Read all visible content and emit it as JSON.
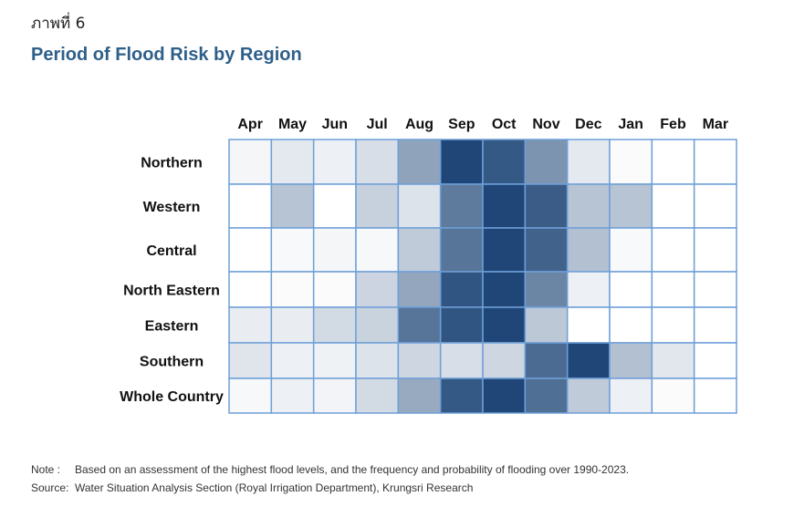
{
  "figure_label": "ภาพที่ 6",
  "footer": {
    "note_key": "Note :",
    "note_text": "Based on an assessment of the highest flood levels, and the frequency and probability of flooding over 1990-2023.",
    "source_key": "Source:",
    "source_text": "Water Situation Analysis Section (Royal Irrigation Department), Krungsri Research"
  },
  "colors": {
    "low": "#ffffff",
    "high": "#1f4677",
    "grid_line": "#6f9fd8",
    "title": "#2e5f8a"
  },
  "chart_data": {
    "type": "heatmap",
    "title": "Period of Flood Risk by Region",
    "xlabel": "",
    "ylabel": "",
    "x_categories": [
      "Apr",
      "May",
      "Jun",
      "Jul",
      "Aug",
      "Sep",
      "Oct",
      "Nov",
      "Dec",
      "Jan",
      "Feb",
      "Mar"
    ],
    "y_categories": [
      "Northern",
      "Western",
      "Central",
      "North Eastern",
      "Eastern",
      "Southern",
      "Whole Country"
    ],
    "value_range": [
      0,
      1
    ],
    "value_meaning": "relative flood risk intensity (estimated from shading)",
    "values": [
      [
        0.05,
        0.12,
        0.08,
        0.18,
        0.5,
        1.0,
        0.9,
        0.58,
        0.12,
        0.02,
        0.0,
        0.0
      ],
      [
        0.0,
        0.32,
        0.0,
        0.25,
        0.15,
        0.72,
        1.0,
        0.88,
        0.32,
        0.32,
        0.0,
        0.0
      ],
      [
        0.0,
        0.03,
        0.05,
        0.04,
        0.28,
        0.75,
        1.0,
        0.85,
        0.34,
        0.03,
        0.0,
        0.0
      ],
      [
        0.0,
        0.02,
        0.02,
        0.23,
        0.48,
        0.92,
        1.0,
        0.66,
        0.08,
        0.0,
        0.0,
        0.0
      ],
      [
        0.1,
        0.1,
        0.2,
        0.24,
        0.75,
        0.92,
        1.0,
        0.3,
        0.0,
        0.0,
        0.0,
        0.0
      ],
      [
        0.14,
        0.08,
        0.07,
        0.15,
        0.22,
        0.18,
        0.22,
        0.8,
        1.0,
        0.34,
        0.13,
        0.0
      ],
      [
        0.04,
        0.08,
        0.06,
        0.2,
        0.46,
        0.9,
        1.0,
        0.78,
        0.28,
        0.08,
        0.02,
        0.0
      ]
    ],
    "legend": "none",
    "grid": true
  }
}
